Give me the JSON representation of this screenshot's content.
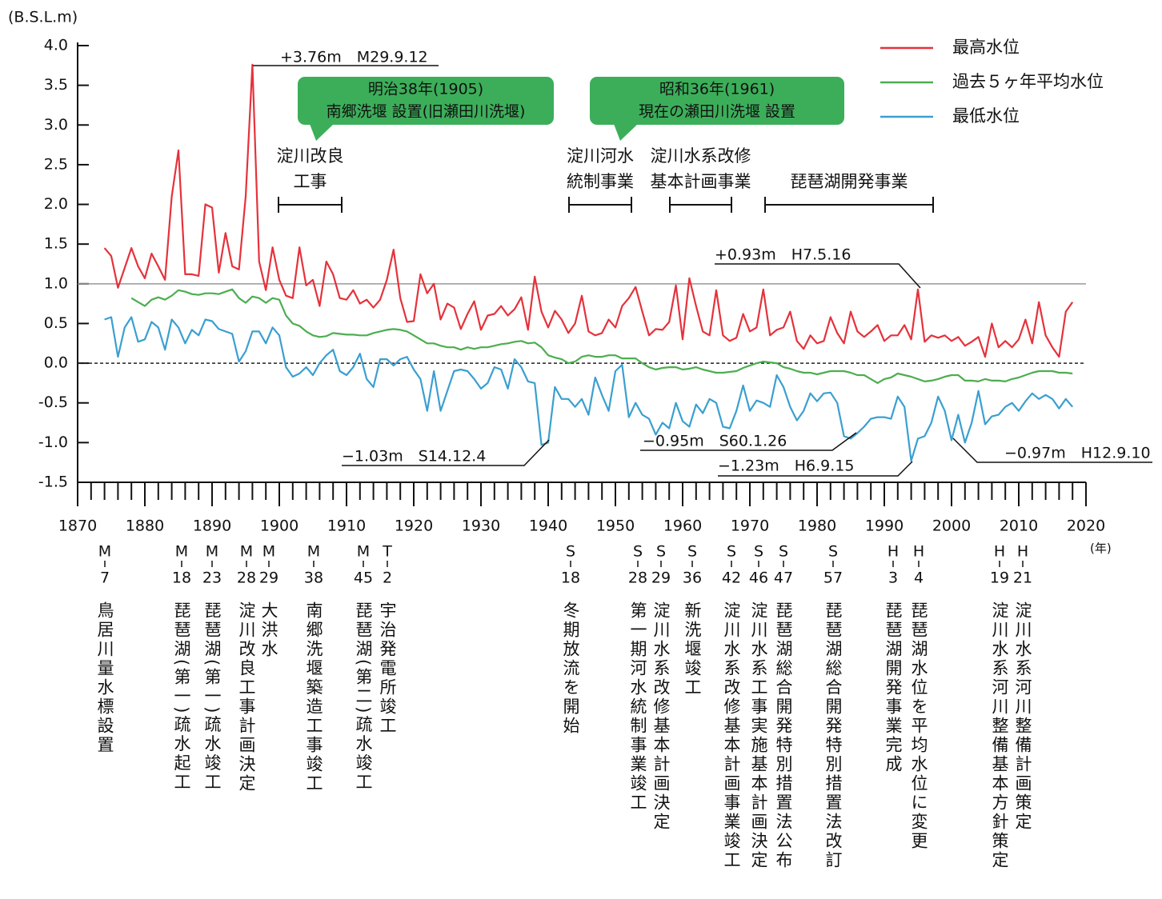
{
  "chart_data": {
    "type": "line",
    "y_axis_label": "(B.S.L.m)",
    "x_axis_label": "(年)",
    "xlim": [
      1870,
      2020
    ],
    "xticks": [
      1870,
      1880,
      1890,
      1900,
      1910,
      1920,
      1930,
      1940,
      1950,
      1960,
      1970,
      1980,
      1990,
      2000,
      2010,
      2020
    ],
    "ylim": [
      -1.5,
      4
    ],
    "yticks": [
      -1.5,
      {
        "value": -1,
        "label": "-1.0"
      },
      -0.5,
      {
        "value": 0,
        "label": "0.0"
      },
      0.5,
      {
        "value": 1,
        "label": "1.0"
      },
      1.5,
      {
        "value": 2,
        "label": "2.0"
      },
      2.5,
      {
        "value": 3,
        "label": "3.0"
      },
      3.5,
      {
        "value": 4,
        "label": "4.0"
      }
    ],
    "reference_lines": [
      {
        "value": 1,
        "style": "solid",
        "color": "#999999"
      },
      {
        "value": 0,
        "style": "dashed",
        "color": "#222222"
      }
    ],
    "legend": "top-right",
    "x": [
      1874,
      1875,
      1876,
      1877,
      1878,
      1879,
      1880,
      1881,
      1882,
      1883,
      1884,
      1885,
      1886,
      1887,
      1888,
      1889,
      1890,
      1891,
      1892,
      1893,
      1894,
      1895,
      1896,
      1897,
      1898,
      1899,
      1900,
      1901,
      1902,
      1903,
      1904,
      1905,
      1906,
      1907,
      1908,
      1909,
      1910,
      1911,
      1912,
      1913,
      1914,
      1915,
      1916,
      1917,
      1918,
      1919,
      1920,
      1921,
      1922,
      1923,
      1924,
      1925,
      1926,
      1927,
      1928,
      1929,
      1930,
      1931,
      1932,
      1933,
      1934,
      1935,
      1936,
      1937,
      1938,
      1939,
      1940,
      1941,
      1942,
      1943,
      1944,
      1945,
      1946,
      1947,
      1948,
      1949,
      1950,
      1951,
      1952,
      1953,
      1954,
      1955,
      1956,
      1957,
      1958,
      1959,
      1960,
      1961,
      1962,
      1963,
      1964,
      1965,
      1966,
      1967,
      1968,
      1969,
      1970,
      1971,
      1972,
      1973,
      1974,
      1975,
      1976,
      1977,
      1978,
      1979,
      1980,
      1981,
      1982,
      1983,
      1984,
      1985,
      1986,
      1987,
      1988,
      1989,
      1990,
      1991,
      1992,
      1993,
      1994,
      1995,
      1996,
      1997,
      1998,
      1999,
      2000,
      2001,
      2002,
      2003,
      2004,
      2005,
      2006,
      2007,
      2008,
      2009,
      2010,
      2011,
      2012,
      2013,
      2014,
      2015,
      2016,
      2017,
      2018
    ],
    "series": [
      {
        "name": "最高水位",
        "color": "#e5323b",
        "values": [
          1.45,
          1.35,
          0.95,
          1.2,
          1.45,
          1.22,
          1.07,
          1.38,
          1.22,
          1.05,
          2.1,
          2.68,
          1.12,
          1.12,
          1.1,
          2.0,
          1.96,
          1.14,
          1.64,
          1.22,
          1.18,
          2.1,
          3.76,
          1.28,
          0.92,
          1.46,
          1.05,
          0.85,
          0.82,
          1.46,
          0.98,
          1.05,
          0.72,
          1.28,
          1.12,
          0.82,
          0.8,
          0.92,
          0.75,
          0.8,
          0.7,
          0.8,
          1.05,
          1.43,
          0.82,
          0.52,
          0.53,
          1.12,
          0.88,
          1.0,
          0.55,
          0.75,
          0.7,
          0.43,
          0.62,
          0.78,
          0.42,
          0.6,
          0.62,
          0.72,
          0.6,
          0.68,
          0.83,
          0.42,
          1.09,
          0.65,
          0.45,
          0.66,
          0.55,
          0.38,
          0.5,
          0.85,
          0.4,
          0.35,
          0.38,
          0.55,
          0.45,
          0.72,
          0.82,
          0.96,
          0.65,
          0.35,
          0.43,
          0.42,
          0.52,
          0.98,
          0.3,
          1.07,
          0.72,
          0.4,
          0.35,
          0.92,
          0.35,
          0.28,
          0.32,
          0.62,
          0.4,
          0.45,
          0.93,
          0.35,
          0.42,
          0.45,
          0.65,
          0.28,
          0.18,
          0.35,
          0.25,
          0.28,
          0.58,
          0.38,
          0.25,
          0.65,
          0.4,
          0.33,
          0.4,
          0.48,
          0.28,
          0.35,
          0.35,
          0.48,
          0.3,
          0.93,
          0.27,
          0.35,
          0.32,
          0.35,
          0.28,
          0.33,
          0.22,
          0.27,
          0.33,
          0.08,
          0.5,
          0.2,
          0.28,
          0.2,
          0.3,
          0.55,
          0.25,
          0.77,
          0.35,
          0.2,
          0.08,
          0.65,
          0.77
        ]
      },
      {
        "name": "過去５ヶ年平均水位",
        "color": "#4cae4f",
        "values": [
          null,
          null,
          null,
          null,
          0.82,
          0.77,
          0.72,
          0.8,
          0.83,
          0.8,
          0.85,
          0.92,
          0.9,
          0.87,
          0.86,
          0.88,
          0.88,
          0.87,
          0.9,
          0.93,
          0.82,
          0.76,
          0.84,
          0.82,
          0.76,
          0.82,
          0.8,
          0.6,
          0.5,
          0.47,
          0.4,
          0.35,
          0.33,
          0.34,
          0.38,
          0.37,
          0.36,
          0.36,
          0.35,
          0.35,
          0.38,
          0.4,
          0.42,
          0.43,
          0.42,
          0.4,
          0.35,
          0.3,
          0.25,
          0.25,
          0.22,
          0.2,
          0.2,
          0.17,
          0.2,
          0.18,
          0.2,
          0.2,
          0.22,
          0.24,
          0.25,
          0.27,
          0.28,
          0.25,
          0.26,
          0.2,
          0.1,
          0.07,
          0.05,
          0.0,
          0.02,
          0.08,
          0.1,
          0.08,
          0.08,
          0.1,
          0.1,
          0.06,
          0.06,
          0.06,
          0.0,
          -0.05,
          -0.08,
          -0.06,
          -0.05,
          -0.05,
          -0.08,
          -0.07,
          -0.05,
          -0.08,
          -0.1,
          -0.12,
          -0.12,
          -0.11,
          -0.1,
          -0.06,
          -0.03,
          0.0,
          0.02,
          0.01,
          0.0,
          -0.05,
          -0.07,
          -0.1,
          -0.12,
          -0.12,
          -0.14,
          -0.12,
          -0.1,
          -0.1,
          -0.1,
          -0.12,
          -0.15,
          -0.15,
          -0.2,
          -0.25,
          -0.2,
          -0.18,
          -0.13,
          -0.15,
          -0.17,
          -0.2,
          -0.23,
          -0.22,
          -0.2,
          -0.17,
          -0.15,
          -0.15,
          -0.22,
          -0.22,
          -0.23,
          -0.2,
          -0.22,
          -0.22,
          -0.23,
          -0.2,
          -0.18,
          -0.15,
          -0.12,
          -0.1,
          -0.1,
          -0.1,
          -0.12,
          -0.12,
          -0.13
        ]
      },
      {
        "name": "最低水位",
        "color": "#3a9fd0",
        "values": [
          0.55,
          0.58,
          0.08,
          0.45,
          0.58,
          0.27,
          0.3,
          0.52,
          0.45,
          0.17,
          0.55,
          0.45,
          0.25,
          0.42,
          0.35,
          0.55,
          0.53,
          0.43,
          0.4,
          0.37,
          0.02,
          0.15,
          0.4,
          0.4,
          0.25,
          0.45,
          0.35,
          -0.05,
          -0.17,
          -0.13,
          -0.05,
          -0.15,
          0.0,
          0.1,
          0.17,
          -0.1,
          -0.15,
          -0.05,
          0.12,
          -0.2,
          -0.3,
          0.05,
          0.05,
          -0.03,
          0.05,
          0.08,
          -0.08,
          -0.2,
          -0.6,
          -0.1,
          -0.6,
          -0.35,
          -0.1,
          -0.08,
          -0.1,
          -0.2,
          -0.32,
          -0.25,
          -0.05,
          -0.08,
          -0.32,
          0.05,
          -0.05,
          -0.23,
          -0.25,
          -1.03,
          -1.0,
          -0.3,
          -0.45,
          -0.45,
          -0.55,
          -0.45,
          -0.65,
          -0.18,
          -0.4,
          -0.6,
          -0.1,
          -0.02,
          -0.68,
          -0.5,
          -0.65,
          -0.7,
          -0.9,
          -0.75,
          -0.82,
          -0.5,
          -0.73,
          -0.8,
          -0.52,
          -0.63,
          -0.45,
          -0.5,
          -0.8,
          -0.82,
          -0.6,
          -0.28,
          -0.6,
          -0.47,
          -0.5,
          -0.55,
          -0.15,
          -0.3,
          -0.55,
          -0.72,
          -0.6,
          -0.38,
          -0.48,
          -0.38,
          -0.37,
          -0.5,
          -0.92,
          -0.95,
          -0.88,
          -0.8,
          -0.7,
          -0.68,
          -0.68,
          -0.7,
          -0.42,
          -0.55,
          -1.23,
          -0.95,
          -0.92,
          -0.75,
          -0.42,
          -0.6,
          -0.97,
          -0.65,
          -1.0,
          -0.75,
          -0.35,
          -0.77,
          -0.67,
          -0.65,
          -0.55,
          -0.5,
          -0.6,
          -0.48,
          -0.38,
          -0.45,
          -0.4,
          -0.45,
          -0.57,
          -0.45,
          -0.55
        ]
      }
    ],
    "annotations": [
      "+3.76m　M29.9.12",
      "+0.93m　H7.5.16",
      "−1.03m　S14.12.4",
      "−0.95m　S60.1.26",
      "−1.23m　H6.9.15",
      "−0.97m　H12.9.10"
    ],
    "callouts": [
      [
        "明治38年(1905)",
        "南郷洗堰 設置(旧瀬田川洗堰)"
      ],
      [
        "昭和36年(1961)",
        "現在の瀬田川洗堰 設置"
      ]
    ],
    "periods": [
      [
        "淀川改良",
        "工事"
      ],
      [
        "淀川河水",
        "統制事業"
      ],
      [
        "淀川水系改修",
        "基本計画事業"
      ],
      [
        "琵琶湖開発事業"
      ]
    ],
    "events": [
      {
        "era": "M",
        "num": "7",
        "text": "鳥居川量水標設置"
      },
      {
        "era": "M",
        "num": "18",
        "text": "琵琶湖(第一)疏水起工"
      },
      {
        "era": "M",
        "num": "23",
        "text": "琵琶湖(第一)疏水竣工"
      },
      {
        "era": "M",
        "num": "28",
        "text": "淀川改良工事計画決定"
      },
      {
        "era": "M",
        "num": "29",
        "text": "大洪水"
      },
      {
        "era": "M",
        "num": "38",
        "text": "南郷洗堰築造工事竣工"
      },
      {
        "era": "M",
        "num": "45",
        "text": "琵琶湖(第二)疏水竣工"
      },
      {
        "era": "T",
        "num": "2",
        "text": "宇治発電所竣工"
      },
      {
        "era": "S",
        "num": "18",
        "text": "冬期放流を開始"
      },
      {
        "era": "S",
        "num": "28",
        "text": "第一期河水統制事業竣工"
      },
      {
        "era": "S",
        "num": "29",
        "text": "淀川水系改修基本計画決定"
      },
      {
        "era": "S",
        "num": "36",
        "text": "新洗堰竣工"
      },
      {
        "era": "S",
        "num": "42",
        "text": "淀川水系改修基本計画事業竣工"
      },
      {
        "era": "S",
        "num": "46",
        "text": "淀川水系工事実施基本計画決定"
      },
      {
        "era": "S",
        "num": "47",
        "text": "琵琶湖総合開発特別措置法公布"
      },
      {
        "era": "S",
        "num": "57",
        "text": "琵琶湖総合開発特別措置法改訂"
      },
      {
        "era": "H",
        "num": "3",
        "text": "琵琶湖開発事業完成"
      },
      {
        "era": "H",
        "num": "4",
        "text": "琵琶湖水位を平均水位に変更"
      },
      {
        "era": "H",
        "num": "19",
        "text": "淀川水系河川整備基本方針策定"
      },
      {
        "era": "H",
        "num": "21",
        "text": "淀川水系河川整備計画策定"
      }
    ]
  }
}
